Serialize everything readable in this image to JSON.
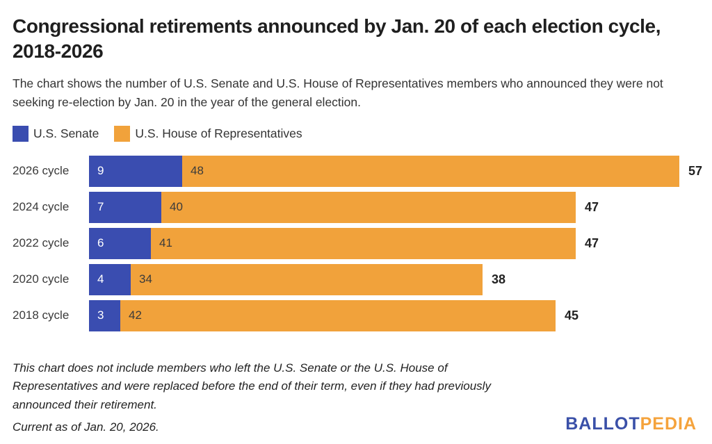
{
  "title": "Congressional retirements announced by Jan. 20 of each election cycle, 2018-2026",
  "subtitle": "The chart shows the number of U.S. Senate and U.S. House of Representatives members who announced they were not seeking re-election by Jan. 20 in the year of the general election.",
  "legend": {
    "items": [
      {
        "label": "U.S. Senate",
        "color": "#3A4DB0"
      },
      {
        "label": "U.S. House of Representatives",
        "color": "#F1A23B"
      }
    ]
  },
  "chart_data": {
    "type": "bar",
    "orientation": "horizontal",
    "stacked": true,
    "categories": [
      "2026 cycle",
      "2024 cycle",
      "2022 cycle",
      "2020 cycle",
      "2018 cycle"
    ],
    "series": [
      {
        "name": "U.S. Senate",
        "color": "#3A4DB0",
        "values": [
          9,
          7,
          6,
          4,
          3
        ]
      },
      {
        "name": "U.S. House of Representatives",
        "color": "#F1A23B",
        "values": [
          48,
          40,
          41,
          34,
          42
        ]
      }
    ],
    "totals": [
      57,
      47,
      47,
      38,
      45
    ],
    "xlim": [
      0,
      57
    ],
    "grid": false,
    "legend_position": "top",
    "value_labels": "inside-start",
    "total_labels": "outside-end"
  },
  "footnote": "This chart does not include members who left the U.S. Senate or the U.S. House of Representatives and were replaced before the end of their term, even if they had previously announced their retirement.",
  "footer": {
    "current_as_of": "Current as of Jan. 20, 2026.",
    "logo": {
      "part1": "BALLOT",
      "part2": "PEDIA",
      "color1": "#3A50A8",
      "color2": "#F5A33C"
    }
  }
}
